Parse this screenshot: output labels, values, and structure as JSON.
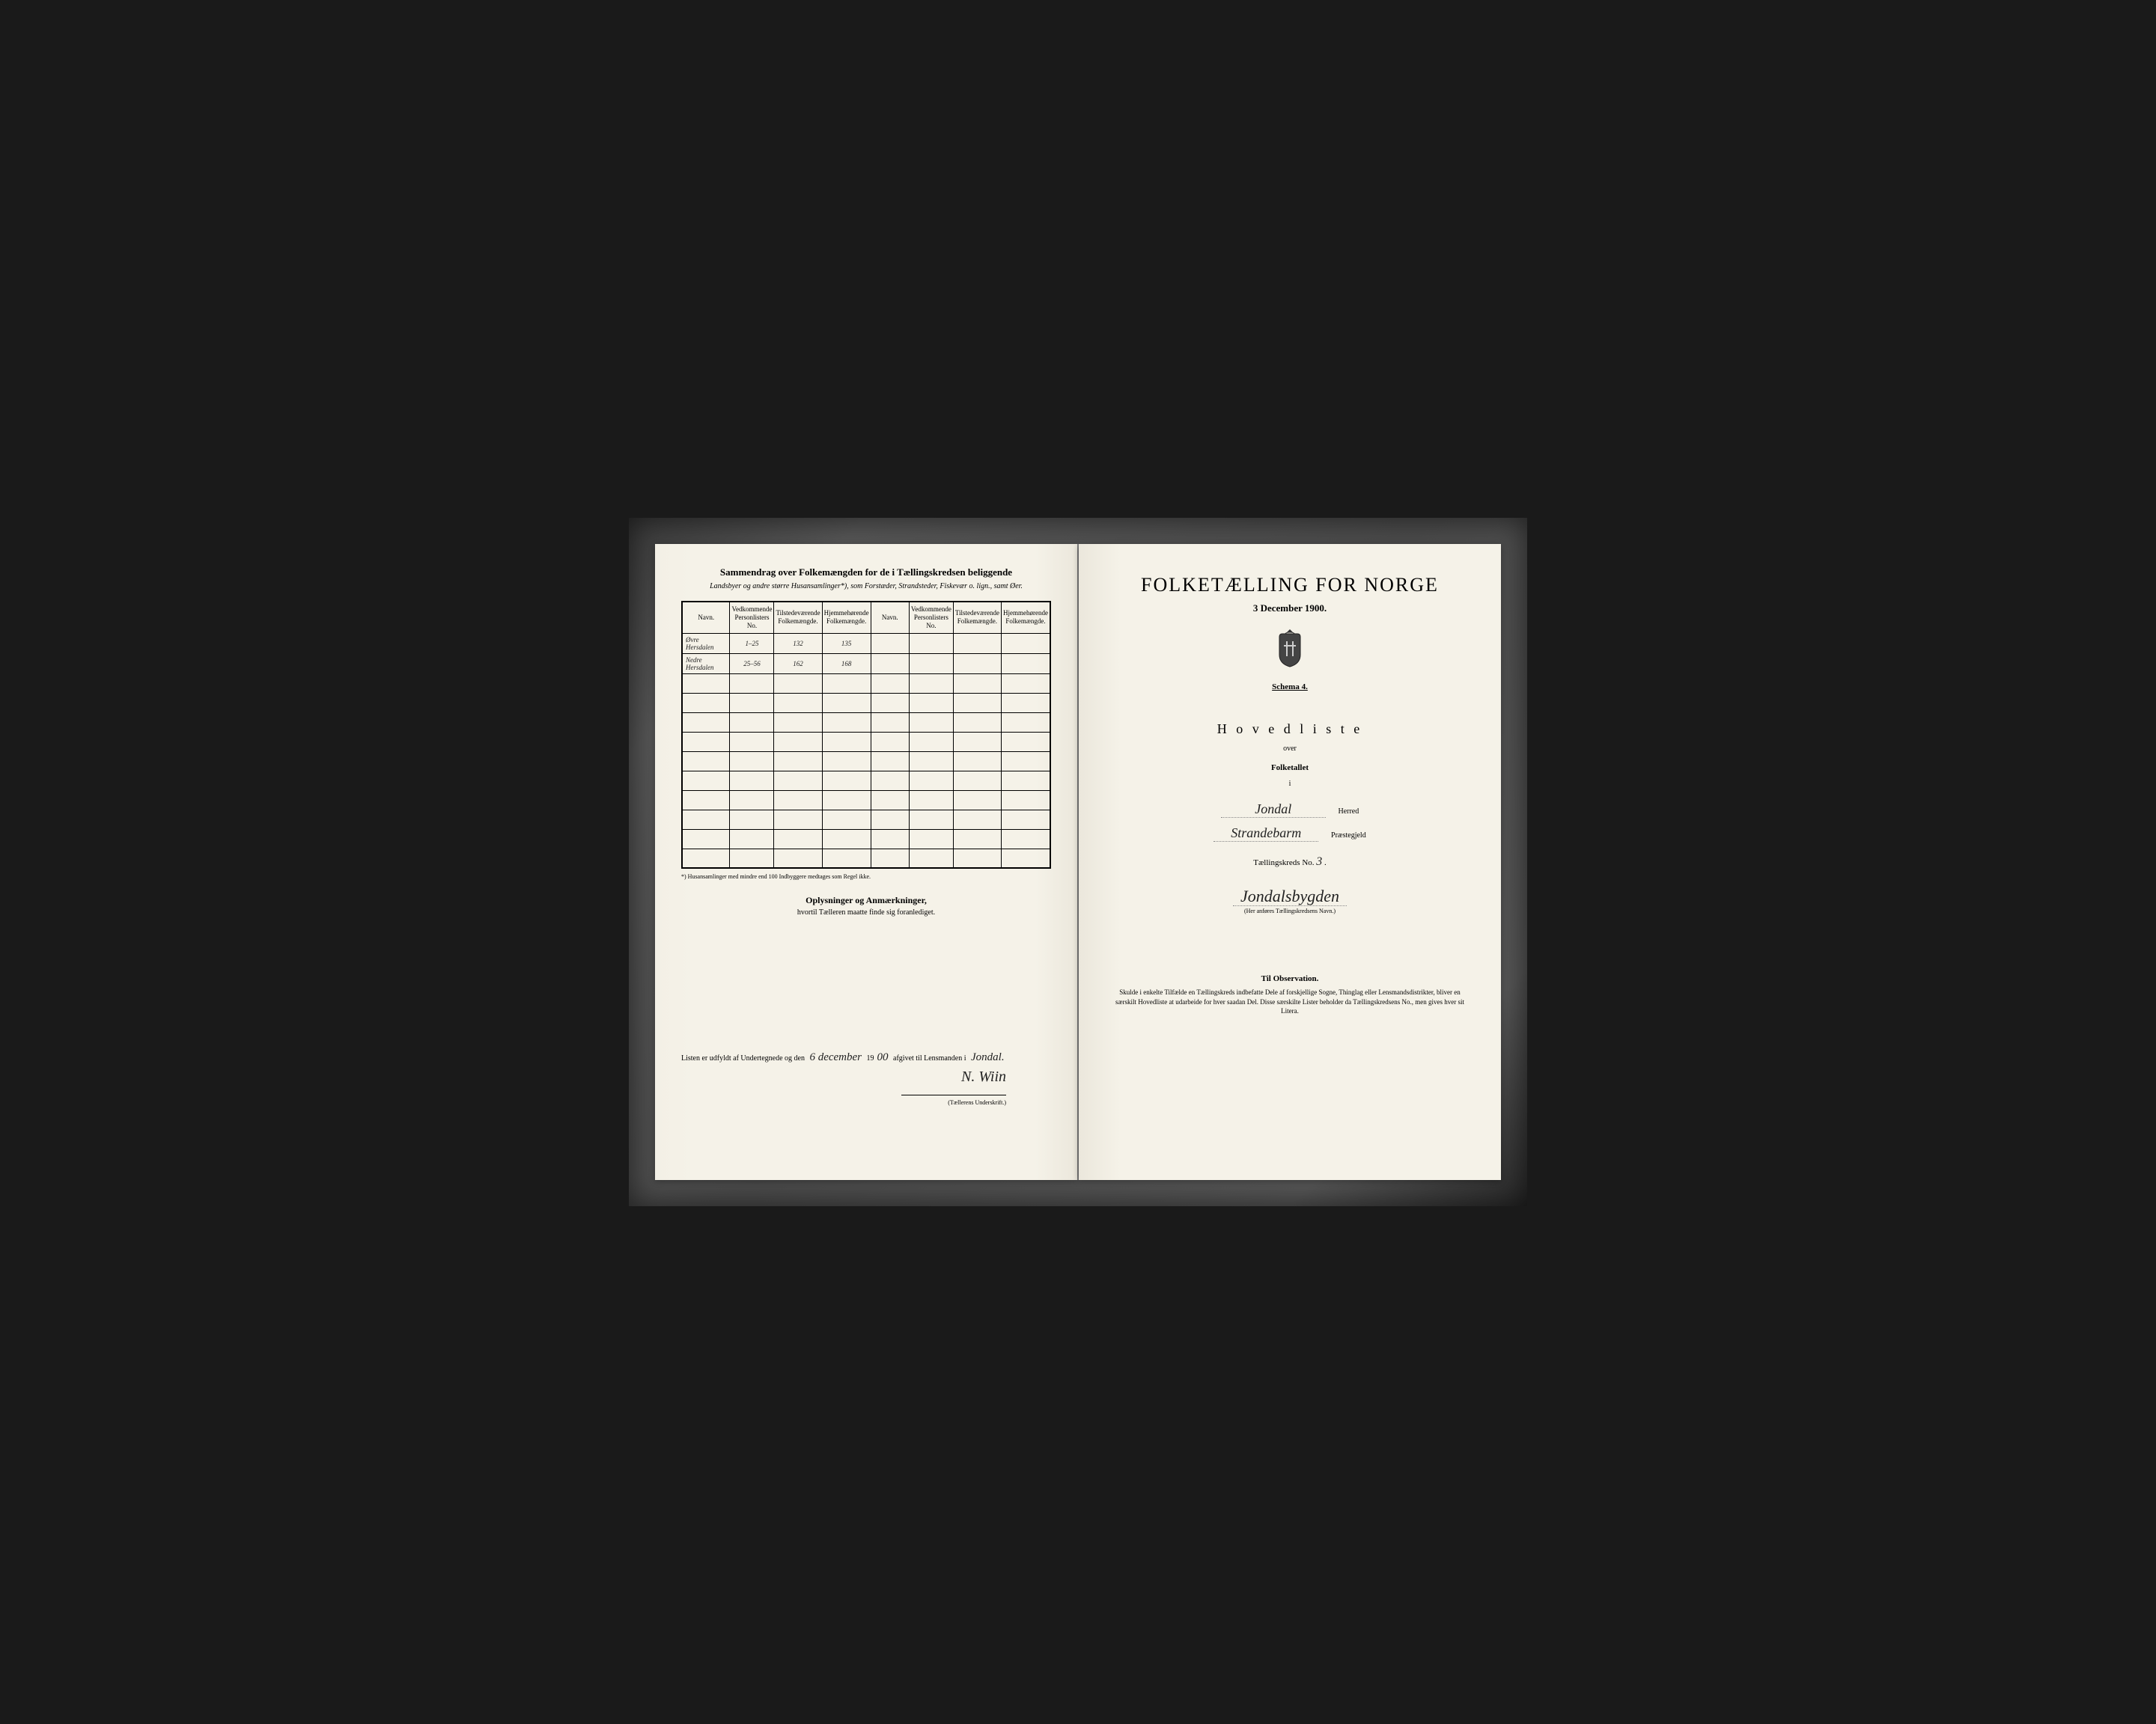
{
  "left": {
    "title": "Sammendrag over Folkemængden for de i Tællingskredsen beliggende",
    "subtitle_html": "Landsbyer og andre større Husansamlinger*), som Forstæder, Strandsteder, Fiskevær o. lign., samt Øer.",
    "columns": [
      "Navn.",
      "Vedkommende Personlisters No.",
      "Tilstedeværende Folkemængde.",
      "Hjemmehørende Folkemængde.",
      "Navn.",
      "Vedkommende Personlisters No.",
      "Tilstedeværende Folkemængde.",
      "Hjemmehørende Folkemængde."
    ],
    "rows": [
      {
        "navn": "Øvre Hersdalen",
        "no": "1–25",
        "tilst": "132",
        "hjem": "135"
      },
      {
        "navn": "Nedre Hersdalen",
        "no": "25–56",
        "tilst": "162",
        "hjem": "168"
      }
    ],
    "blank_rows": 10,
    "footnote": "*) Husansamlinger med mindre end 100 Indbyggere medtages som Regel ikke.",
    "oplys_title": "Oplysninger og Anmærkninger,",
    "oplys_sub": "hvortil Tælleren maatte finde sig foranlediget.",
    "listen_prefix": "Listen er udfyldt af Undertegnede og den",
    "listen_day": "6 december",
    "listen_year_prefix": "19",
    "listen_year_hw": "00",
    "listen_mid": "afgivet til Lensmanden i",
    "listen_place": "Jondal.",
    "signature": "N. Wiin",
    "sig_label": "(Tællerens Underskrift.)"
  },
  "right": {
    "title": "FOLKETÆLLING FOR NORGE",
    "date": "3 December 1900.",
    "schema": "Schema 4.",
    "hovedliste": "H o v e d l i s t e",
    "over": "over",
    "folketal": "Folketallet",
    "i": "i",
    "herred_value": "Jondal",
    "herred_label": "Herred",
    "praeste_value": "Strandebarm",
    "praeste_label": "Præstegjeld",
    "tk_label": "Tællingskreds No.",
    "tk_no": "3",
    "kreds_name": "Jondalsbygden",
    "kreds_hint": "(Her anføres Tællingskredsens Navn.)",
    "obs_title": "Til Observation.",
    "obs_body": "Skulde i enkelte Tilfælde en Tællingskreds indbefatte Dele af forskjellige Sogne, Thinglag eller Lensmands­distrikter, bliver en særskilt Hovedliste at udarbeide for hver saadan Del. Disse særskilte Lister beholder da Tællingskredsens No., men gives hver sit Litera."
  },
  "colors": {
    "paper": "#f5f2e8",
    "ink": "#1a1a1a",
    "frame": "#3a3a3a"
  }
}
